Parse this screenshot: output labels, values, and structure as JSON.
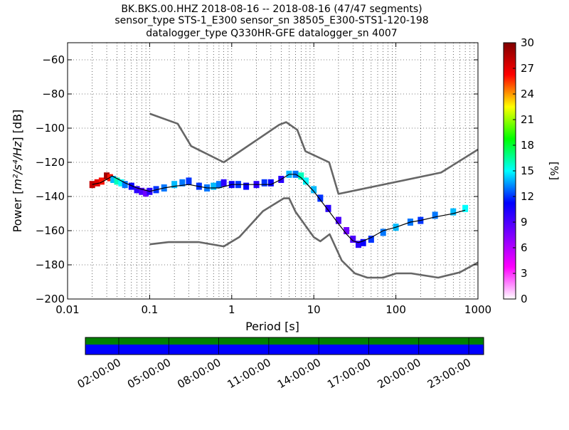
{
  "chart_data": {
    "type": "heatmap",
    "title_lines": [
      "BK.BKS.00.HHZ   2018-08-16 -- 2018-08-16  (47/47 segments)",
      "sensor_type STS-1_E300 sensor_sn 38505_E300-STS1-120-198",
      "datalogger_type Q330HR-GFE datalogger_sn 4007"
    ],
    "xlabel": "Period [s]",
    "ylabel_parts": {
      "prefix": "Power [",
      "math": "m²/s⁴/Hz",
      "suffix": "] [dB]"
    },
    "x_scale": "log",
    "xlim": [
      0.01,
      1000
    ],
    "ylim": [
      -200,
      -50
    ],
    "x_ticks": [
      0.01,
      0.1,
      1,
      10,
      100,
      1000
    ],
    "x_tick_labels": [
      "0.01",
      "0.1",
      "1",
      "10",
      "100",
      "1000"
    ],
    "y_ticks": [
      -200,
      -180,
      -160,
      -140,
      -120,
      -100,
      -80,
      -60
    ],
    "y_tick_labels": [
      "−200",
      "−180",
      "−160",
      "−140",
      "−120",
      "−100",
      "−80",
      "−60"
    ],
    "grid": true,
    "colorbar": {
      "label": "[%]",
      "range": [
        0,
        30
      ],
      "ticks": [
        0,
        3,
        6,
        9,
        12,
        15,
        18,
        21,
        24,
        27,
        30
      ],
      "tick_labels": [
        "0",
        "3",
        "6",
        "9",
        "12",
        "15",
        "18",
        "21",
        "24",
        "27",
        "30"
      ],
      "colormap": [
        "#ffffff",
        "#ff00ff",
        "#7f00ff",
        "#0000ff",
        "#00ffff",
        "#00ff00",
        "#ffff00",
        "#ff0000",
        "#7f0000"
      ]
    },
    "noise_models": [
      {
        "name": "NHNM",
        "period": [
          0.1,
          0.22,
          0.32,
          0.8,
          3.8,
          4.6,
          6.3,
          7.9,
          15.4,
          20,
          354.8,
          1000
        ],
        "power": [
          -91.5,
          -97.4,
          -110.5,
          -120,
          -98,
          -96.5,
          -101,
          -113.5,
          -120,
          -138.5,
          -126,
          -112.5
        ]
      },
      {
        "name": "NLNM",
        "period": [
          0.1,
          0.17,
          0.4,
          0.8,
          1.24,
          2.4,
          4.3,
          5,
          6,
          10,
          12,
          15.6,
          21.9,
          31.6,
          45,
          70,
          101,
          154,
          328,
          600,
          1000
        ],
        "power": [
          -168,
          -166.7,
          -166.7,
          -169.2,
          -163.7,
          -148.6,
          -141.1,
          -141.1,
          -149,
          -163.8,
          -166.2,
          -162.1,
          -177.5,
          -185,
          -187.5,
          -187.5,
          -185,
          -185,
          -187.5,
          -184.4,
          -178.6
        ]
      }
    ],
    "mode_line": {
      "period": [
        0.02,
        0.025,
        0.03,
        0.035,
        0.05,
        0.07,
        0.1,
        0.15,
        0.2,
        0.3,
        0.5,
        0.7,
        1,
        1.5,
        2,
        3,
        4,
        5,
        6,
        7,
        8,
        10,
        12,
        15,
        20,
        25,
        30,
        35,
        40,
        50,
        70,
        100,
        150,
        200,
        300,
        500,
        700
      ],
      "power": [
        -133,
        -132,
        -130,
        -128,
        -132,
        -135,
        -137,
        -135,
        -134,
        -133,
        -135,
        -135,
        -133,
        -133,
        -133,
        -133,
        -130,
        -127,
        -127,
        -129,
        -132,
        -137,
        -142,
        -148,
        -156,
        -162,
        -166,
        -167,
        -166,
        -164,
        -160,
        -158,
        -155,
        -154,
        -152,
        -150,
        -148
      ]
    },
    "histogram_cells": [
      [
        0.02,
        -133,
        28
      ],
      [
        0.023,
        -132,
        27
      ],
      [
        0.026,
        -131,
        26
      ],
      [
        0.03,
        -128,
        29
      ],
      [
        0.033,
        -129,
        26
      ],
      [
        0.036,
        -130,
        14
      ],
      [
        0.04,
        -131,
        16
      ],
      [
        0.045,
        -132,
        15
      ],
      [
        0.05,
        -133,
        13
      ],
      [
        0.06,
        -134,
        11
      ],
      [
        0.07,
        -136,
        10
      ],
      [
        0.08,
        -137,
        9
      ],
      [
        0.09,
        -138,
        8
      ],
      [
        0.1,
        -137,
        10
      ],
      [
        0.12,
        -136,
        12
      ],
      [
        0.15,
        -135,
        13
      ],
      [
        0.2,
        -133,
        14
      ],
      [
        0.25,
        -132,
        13
      ],
      [
        0.3,
        -131,
        12
      ],
      [
        0.4,
        -134,
        12
      ],
      [
        0.5,
        -135,
        13
      ],
      [
        0.6,
        -134,
        14
      ],
      [
        0.7,
        -133,
        13
      ],
      [
        0.8,
        -132,
        10
      ],
      [
        1,
        -133,
        11
      ],
      [
        1.2,
        -133,
        12
      ],
      [
        1.5,
        -134,
        11
      ],
      [
        2,
        -133,
        10
      ],
      [
        2.5,
        -132,
        12
      ],
      [
        3,
        -132,
        11
      ],
      [
        4,
        -130,
        10
      ],
      [
        5,
        -127,
        14
      ],
      [
        6,
        -127,
        13
      ],
      [
        7,
        -128,
        16
      ],
      [
        8,
        -131,
        15
      ],
      [
        10,
        -136,
        14
      ],
      [
        12,
        -141,
        12
      ],
      [
        15,
        -147,
        10
      ],
      [
        20,
        -154,
        9
      ],
      [
        25,
        -160,
        8
      ],
      [
        30,
        -165,
        9
      ],
      [
        35,
        -168,
        10
      ],
      [
        40,
        -167,
        11
      ],
      [
        50,
        -165,
        12
      ],
      [
        70,
        -161,
        13
      ],
      [
        100,
        -158,
        14
      ],
      [
        150,
        -155,
        13
      ],
      [
        200,
        -154,
        12
      ],
      [
        300,
        -151,
        13
      ],
      [
        500,
        -149,
        14
      ],
      [
        700,
        -147,
        15
      ]
    ],
    "time_axis": {
      "labels": [
        "02:00:00",
        "05:00:00",
        "08:00:00",
        "11:00:00",
        "14:00:00",
        "17:00:00",
        "20:00:00",
        "23:00:00"
      ]
    }
  }
}
